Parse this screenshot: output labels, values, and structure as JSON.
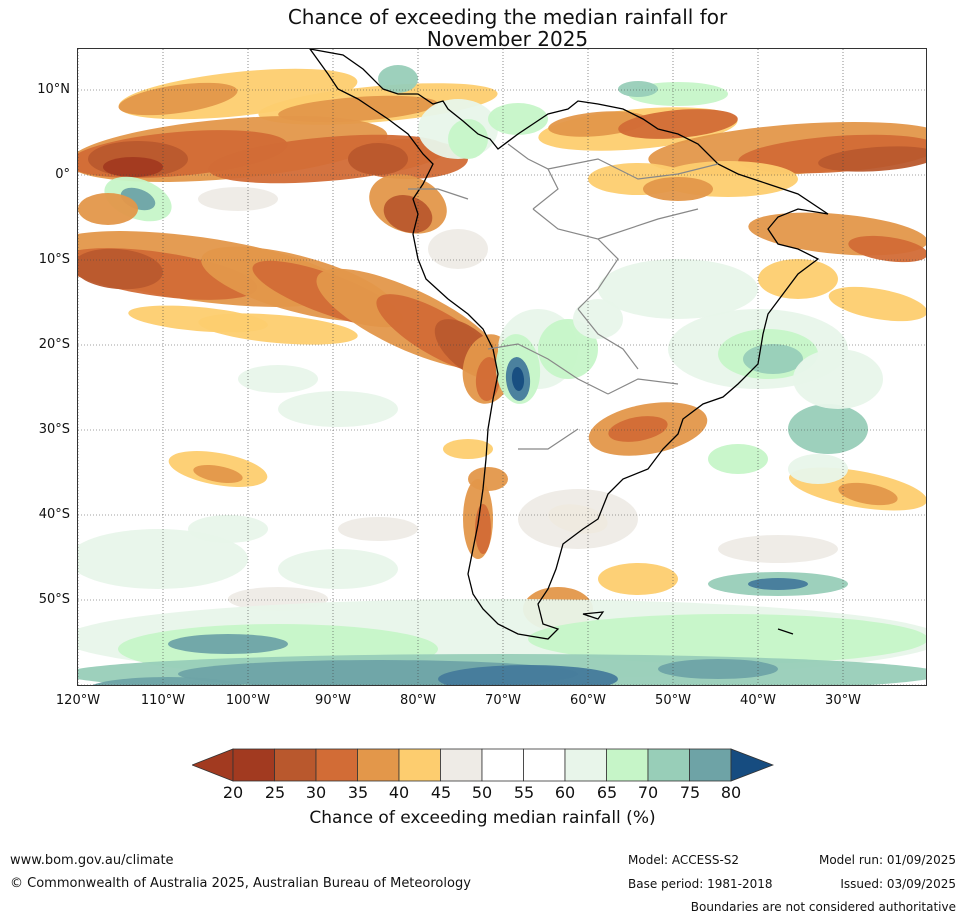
{
  "title": {
    "line1": "Chance of exceeding the median rainfall for",
    "line2": "November 2025"
  },
  "map": {
    "lat_labels": [
      "10°N",
      "0°",
      "10°S",
      "20°S",
      "30°S",
      "40°S",
      "50°S"
    ],
    "lon_labels": [
      "120°W",
      "110°W",
      "100°W",
      "90°W",
      "80°W",
      "70°W",
      "60°W",
      "50°W",
      "40°W",
      "30°W"
    ],
    "colors": {
      "p20": "#a23a20",
      "p25": "#b9582d",
      "p30": "#d26c36",
      "p35": "#e3974a",
      "p40": "#fdcd6f",
      "p45": "#eeebe6",
      "p50": "#ffffff",
      "p55": "#ffffff",
      "p60": "#e8f5ea",
      "p65": "#c6f5c8",
      "p70": "#98ceb8",
      "p75": "#6ea3a6",
      "p80": "#447a9b",
      "p85": "#164c80",
      "coast": "#000000",
      "border": "#888888"
    }
  },
  "colorbar": {
    "ticks": [
      "20",
      "25",
      "30",
      "35",
      "40",
      "45",
      "50",
      "55",
      "60",
      "65",
      "70",
      "75",
      "80"
    ],
    "label": "Chance of exceeding median rainfall (%)"
  },
  "footer": {
    "website": "www.bom.gov.au/climate",
    "copyright": "© Commonwealth of Australia 2025, Australian Bureau of Meteorology",
    "model": "Model: ACCESS-S2",
    "base_period": "Base period: 1981-2018",
    "model_run": "Model run: 01/09/2025",
    "issued": "Issued: 03/09/2025",
    "disclaimer": "Boundaries are not considered authoritative"
  }
}
